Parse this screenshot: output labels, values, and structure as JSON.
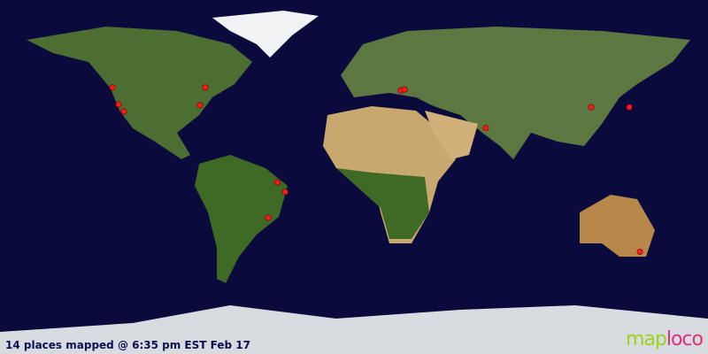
{
  "caption": "14 places mapped @ 6:35 pm EST Feb 17",
  "logo": {
    "part1": "map",
    "part2": "loco",
    "color1": "#9ad41c",
    "color2": "#e0307a"
  },
  "map": {
    "projection": "equirectangular",
    "ocean_color": "#0a0a3c",
    "marker_color": "#ff1a1a",
    "markers": [
      {
        "lon": -122.8,
        "lat": 45.5
      },
      {
        "lon": -119.7,
        "lat": 36.9
      },
      {
        "lon": -117.0,
        "lat": 33.3
      },
      {
        "lon": -75.6,
        "lat": 45.5
      },
      {
        "lon": -78.3,
        "lat": 36.5
      },
      {
        "lon": -39.0,
        "lat": -2.7
      },
      {
        "lon": -35.0,
        "lat": -7.6
      },
      {
        "lon": -43.6,
        "lat": -20.7
      },
      {
        "lon": 23.9,
        "lat": 44.0
      },
      {
        "lon": 25.7,
        "lat": 44.5
      },
      {
        "lon": 67.0,
        "lat": 24.9
      },
      {
        "lon": 120.6,
        "lat": 35.5
      },
      {
        "lon": 140.0,
        "lat": 35.5
      },
      {
        "lon": 145.4,
        "lat": -38.0
      }
    ]
  }
}
